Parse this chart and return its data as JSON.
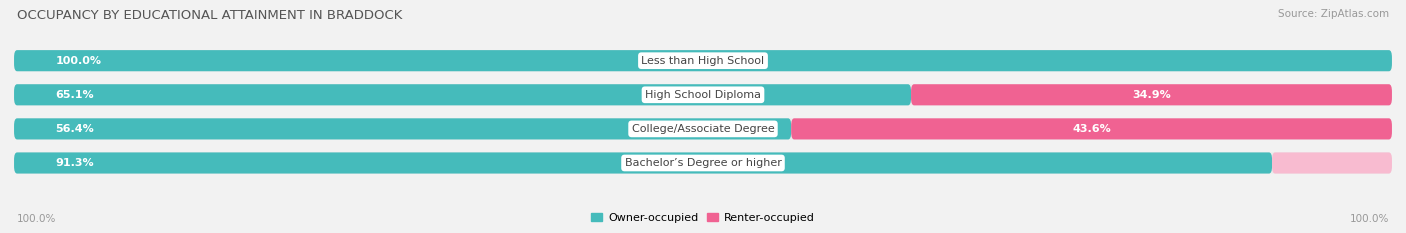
{
  "title": "OCCUPANCY BY EDUCATIONAL ATTAINMENT IN BRADDOCK",
  "source": "Source: ZipAtlas.com",
  "categories": [
    "Less than High School",
    "High School Diploma",
    "College/Associate Degree",
    "Bachelor’s Degree or higher"
  ],
  "owner_values": [
    100.0,
    65.1,
    56.4,
    91.3
  ],
  "renter_values": [
    0.0,
    34.9,
    43.6,
    8.7
  ],
  "owner_color": "#45BBBB",
  "renter_color": "#F06292",
  "renter_color_light": "#F8BBD0",
  "bar_bg_color": "#EBEBEB",
  "bar_height": 0.62,
  "bar_gap": 0.18,
  "title_fontsize": 9.5,
  "label_fontsize": 8.0,
  "value_fontsize": 8.0,
  "source_fontsize": 7.5,
  "legend_fontsize": 8.0,
  "axis_label_left": "100.0%",
  "axis_label_right": "100.0%",
  "bg_color": "#F2F2F2"
}
